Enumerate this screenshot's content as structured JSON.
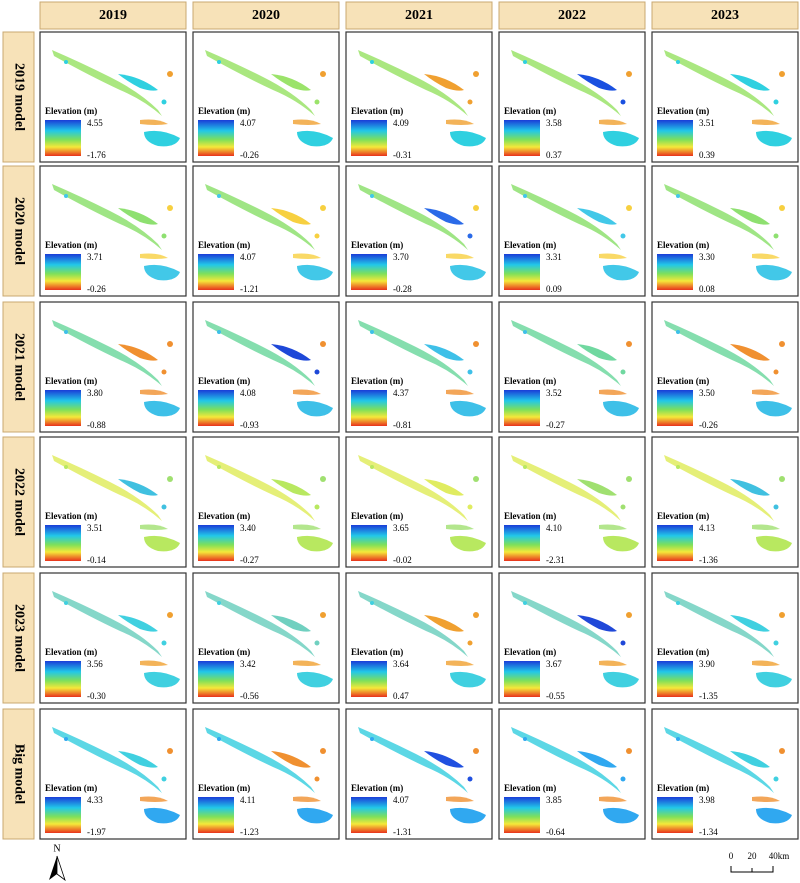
{
  "columns": [
    "2019",
    "2020",
    "2021",
    "2022",
    "2023"
  ],
  "rows": [
    {
      "label": "2019 model",
      "cells": [
        {
          "legend_title": "Elevation (m)",
          "max": "4.55",
          "min": "-1.76"
        },
        {
          "legend_title": "Elevation (m)",
          "max": "4.07",
          "min": "-0.26"
        },
        {
          "legend_title": "Elevation (m)",
          "max": "4.09",
          "min": "-0.31"
        },
        {
          "legend_title": "Elevation (m)",
          "max": "3.58",
          "min": "0.37"
        },
        {
          "legend_title": "Elevation (m)",
          "max": "3.51",
          "min": "0.39"
        }
      ]
    },
    {
      "label": "2020 model",
      "cells": [
        {
          "legend_title": "Elevation (m)",
          "max": "3.71",
          "min": "-0.26"
        },
        {
          "legend_title": "Elevation (m)",
          "max": "4.07",
          "min": "-1.21"
        },
        {
          "legend_title": "Elevation (m)",
          "max": "3.70",
          "min": "-0.28"
        },
        {
          "legend_title": "Elevation (m)",
          "max": "3.31",
          "min": "0.09"
        },
        {
          "legend_title": "Elevation (m)",
          "max": "3.30",
          "min": "0.08"
        }
      ]
    },
    {
      "label": "2021 model",
      "cells": [
        {
          "legend_title": "Elevation (m)",
          "max": "3.80",
          "min": "-0.88"
        },
        {
          "legend_title": "Elevation (m)",
          "max": "4.08",
          "min": "-0.93"
        },
        {
          "legend_title": "Elevation (m)",
          "max": "4.37",
          "min": "-0.81"
        },
        {
          "legend_title": "Elevation (m)",
          "max": "3.52",
          "min": "-0.27"
        },
        {
          "legend_title": "Elevation (m)",
          "max": "3.50",
          "min": "-0.26"
        }
      ]
    },
    {
      "label": "2022 model",
      "cells": [
        {
          "legend_title": "Elevation (m)",
          "max": "3.51",
          "min": "-0.14"
        },
        {
          "legend_title": "Elevation (m)",
          "max": "3.40",
          "min": "-0.27"
        },
        {
          "legend_title": "Elevation (m)",
          "max": "3.65",
          "min": "-0.02"
        },
        {
          "legend_title": "Elevation (m)",
          "max": "4.10",
          "min": "-2.31"
        },
        {
          "legend_title": "Elevation (m)",
          "max": "4.13",
          "min": "-1.36"
        }
      ]
    },
    {
      "label": "2023 model",
      "cells": [
        {
          "legend_title": "Elevation (m)",
          "max": "3.56",
          "min": "-0.30"
        },
        {
          "legend_title": "Elevation (m)",
          "max": "3.42",
          "min": "-0.56"
        },
        {
          "legend_title": "Elevation (m)",
          "max": "3.64",
          "min": "0.47"
        },
        {
          "legend_title": "Elevation (m)",
          "max": "3.67",
          "min": "-0.55"
        },
        {
          "legend_title": "Elevation (m)",
          "max": "3.90",
          "min": "-1.35"
        }
      ]
    },
    {
      "label": "Big model",
      "cells": [
        {
          "legend_title": "Elevation (m)",
          "max": "4.33",
          "min": "-1.97"
        },
        {
          "legend_title": "Elevation (m)",
          "max": "4.11",
          "min": "-1.23"
        },
        {
          "legend_title": "Elevation (m)",
          "max": "4.07",
          "min": "-1.31"
        },
        {
          "legend_title": "Elevation (m)",
          "max": "3.85",
          "min": "-0.64"
        },
        {
          "legend_title": "Elevation (m)",
          "max": "3.98",
          "min": "-1.34"
        }
      ]
    }
  ],
  "north_label": "N",
  "scale_bar": {
    "labels": [
      "0",
      "20",
      "40km"
    ]
  }
}
